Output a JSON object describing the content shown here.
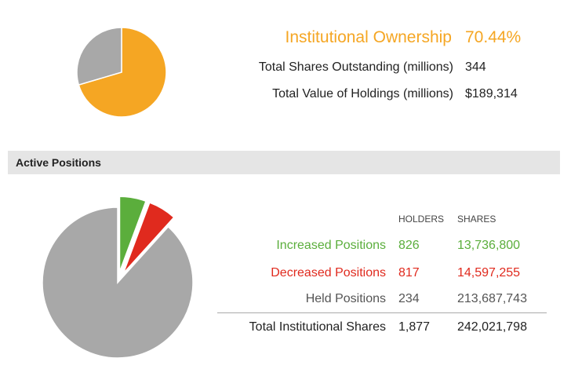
{
  "summary": {
    "ownership_label": "Institutional Ownership",
    "ownership_value": "70.44%",
    "shares_label": "Total Shares Outstanding (millions)",
    "shares_value": "344",
    "holdings_label": "Total Value of Holdings (millions)",
    "holdings_value": "$189,314"
  },
  "section": {
    "title": "Active Positions"
  },
  "table": {
    "headers": {
      "holders": "HOLDERS",
      "shares": "SHARES"
    },
    "rows": [
      {
        "label": "Increased Positions",
        "holders": "826",
        "shares": "13,736,800"
      },
      {
        "label": "Decreased Positions",
        "holders": "817",
        "shares": "14,597,255"
      },
      {
        "label": "Held Positions",
        "holders": "234",
        "shares": "213,687,743"
      }
    ],
    "total": {
      "label": "Total Institutional Shares",
      "holders": "1,877",
      "shares": "242,021,798"
    }
  },
  "colors": {
    "accent_orange": "#F5A623",
    "increased_green": "#5BAE3C",
    "decreased_red": "#E02A1E",
    "held_gray": "#A8A8A8",
    "remainder_gray": "#A8A8A8"
  },
  "chart_data": [
    {
      "type": "pie",
      "title": "",
      "slices": [
        {
          "value": 70.44,
          "color": "#F5A623"
        },
        {
          "value": 29.56,
          "color": "#A8A8A8"
        }
      ]
    },
    {
      "type": "pie",
      "title": "",
      "exploded": [
        "increased",
        "decreased"
      ],
      "slices": [
        {
          "key": "increased",
          "value": 13736800,
          "color": "#5BAE3C"
        },
        {
          "key": "decreased",
          "value": 14597255,
          "color": "#E02A1E"
        },
        {
          "key": "held",
          "value": 213687743,
          "color": "#A8A8A8"
        }
      ]
    }
  ]
}
